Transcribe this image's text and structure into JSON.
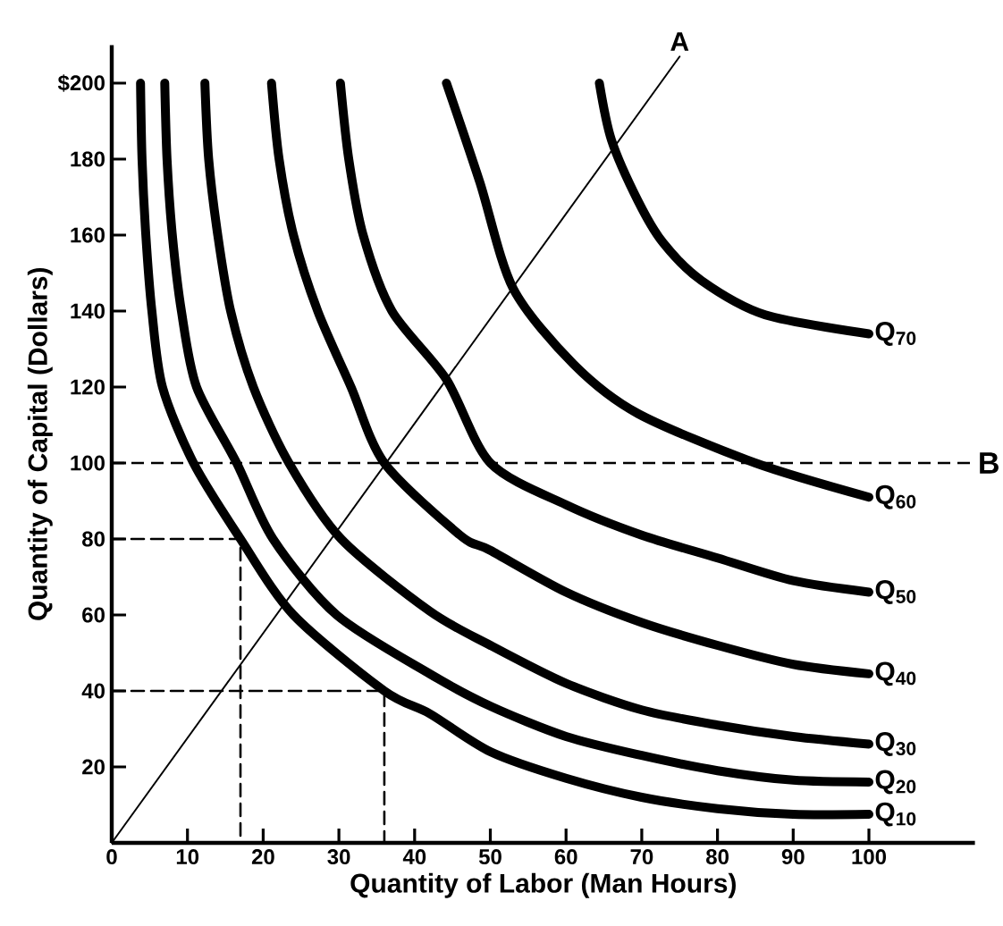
{
  "chart_data": {
    "type": "line",
    "xlabel": "Quantity of Labor (Man Hours)",
    "ylabel": "Quantity of Capital (Dollars)",
    "xlim": [
      0,
      114
    ],
    "ylim": [
      0,
      210
    ],
    "xticks": [
      0,
      10,
      20,
      30,
      40,
      50,
      60,
      70,
      80,
      90,
      100
    ],
    "yticks": [
      {
        "value": 0,
        "label": null
      },
      20,
      40,
      60,
      80,
      100,
      120,
      140,
      160,
      180,
      {
        "value": 200,
        "label": "$200"
      }
    ],
    "series": [
      {
        "name": "Q$_{10}$",
        "color": "#000000",
        "x": [
          3.8,
          4,
          4.5,
          5.3,
          6.7,
          10.8,
          17,
          24,
          36,
          42,
          50,
          60,
          70,
          80,
          90,
          100
        ],
        "values": [
          200,
          180,
          160,
          140,
          120,
          100,
          80,
          60,
          40,
          34,
          24,
          17,
          12,
          9,
          7.5,
          7.5
        ]
      },
      {
        "name": "Q$_{20}$",
        "color": "#000000",
        "x": [
          7,
          7.3,
          8,
          9.2,
          11.2,
          16.5,
          21.3,
          29.7,
          42,
          50,
          60,
          70,
          80,
          90,
          100
        ],
        "values": [
          200,
          180,
          160,
          140,
          120,
          100,
          80,
          60,
          44.5,
          36,
          28,
          23,
          19,
          16.5,
          16
        ]
      },
      {
        "name": "Q$_{30}$",
        "color": "#000000",
        "x": [
          12.3,
          12.8,
          14,
          15.7,
          18.7,
          23.4,
          30.3,
          42,
          50,
          60,
          70,
          80,
          90,
          100
        ],
        "values": [
          200,
          180,
          160,
          140,
          120,
          100,
          80,
          61,
          52,
          42,
          35,
          31,
          28,
          26
        ]
      },
      {
        "name": "Q$_{40}$",
        "color": "#000000",
        "x": [
          21.1,
          22.1,
          24,
          27.2,
          31.6,
          36,
          46,
          50,
          60,
          70,
          80,
          90,
          100
        ],
        "values": [
          200,
          180,
          160,
          140,
          120,
          100,
          81,
          77,
          66,
          58,
          52,
          47,
          44.5
        ]
      },
      {
        "name": "Q$_{50}$",
        "color": "#000000",
        "x": [
          30.2,
          31.3,
          33.2,
          37,
          44.2,
          50,
          60,
          70,
          80,
          90,
          100
        ],
        "values": [
          200,
          180,
          160,
          140,
          122,
          100,
          89,
          81,
          75,
          69,
          66
        ]
      },
      {
        "name": "Q$_{60}$",
        "color": "#000000",
        "x": [
          44.2,
          48.6,
          53,
          61,
          69.5,
          85,
          100
        ],
        "values": [
          200,
          174,
          146,
          126,
          113,
          100,
          91
        ]
      },
      {
        "name": "Q$_{70}$",
        "color": "#000000",
        "x": [
          64.4,
          66,
          69.5,
          72.8,
          77.9,
          86.3,
          100
        ],
        "values": [
          200,
          185,
          169,
          158,
          148,
          139,
          134
        ]
      },
      {
        "name": "A",
        "color": "#000000",
        "x": [
          0,
          75
        ],
        "values": [
          0,
          207
        ]
      },
      {
        "color": "#000000",
        "line_style": "dashed",
        "x": [
          0,
          17,
          17
        ],
        "values": [
          80,
          80,
          0
        ]
      },
      {
        "color": "#000000",
        "line_style": "dashed",
        "x": [
          0,
          36,
          36
        ],
        "values": [
          40,
          40,
          0
        ]
      }
    ],
    "ref_lines": [
      {
        "axis": "y",
        "value": 100,
        "label": "B",
        "line_style": "dashed",
        "color": "#000000"
      }
    ]
  }
}
